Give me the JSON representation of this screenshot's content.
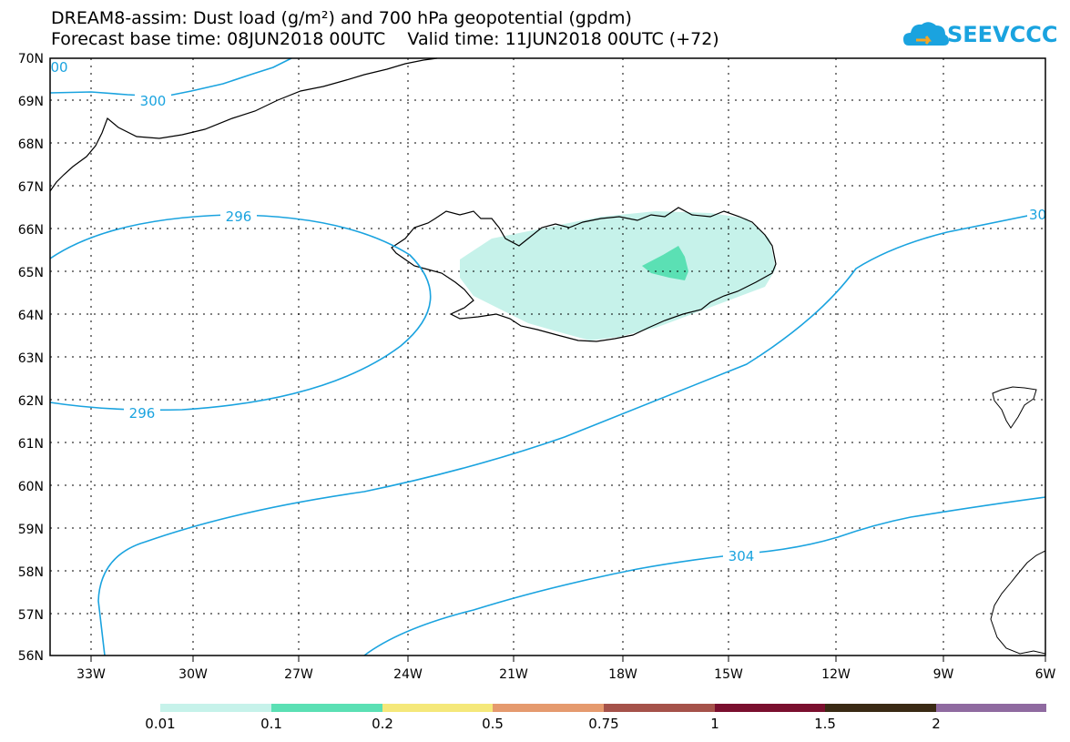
{
  "title": {
    "line1": "DREAM8-assim: Dust load (g/m²) and 700 hPa geopotential (gpdm)",
    "line2": "Forecast base time: 08JUN2018 00UTC    Valid time: 11JUN2018 00UTC (+72)"
  },
  "logo": {
    "text": "SEEVCCC",
    "icon": "cloud-icon"
  },
  "map": {
    "lat_labels": [
      "70N",
      "69N",
      "68N",
      "67N",
      "66N",
      "65N",
      "64N",
      "63N",
      "62N",
      "61N",
      "60N",
      "59N",
      "58N",
      "57N",
      "56N"
    ],
    "lon_labels": [
      "33W",
      "30W",
      "27W",
      "24W",
      "21W",
      "18W",
      "15W",
      "12W",
      "9W",
      "6W"
    ],
    "lat_range": [
      56,
      70
    ],
    "lon_range": [
      -34.4,
      -6
    ],
    "grid": "dotted"
  },
  "contours": {
    "color": "#1aa3df",
    "labels": [
      {
        "text": "300"
      },
      {
        "text": "00"
      },
      {
        "text": "296"
      },
      {
        "text": "296"
      },
      {
        "text": "30"
      },
      {
        "text": "304"
      }
    ]
  },
  "colorbar": {
    "levels": [
      "0.01",
      "0.1",
      "0.2",
      "0.5",
      "0.75",
      "1",
      "1.5",
      "2"
    ],
    "colors": [
      "#c6f2ea",
      "#5be0b4",
      "#f5e87a",
      "#e59a6e",
      "#a5524a",
      "#7a0f2e",
      "#3a2a14",
      "#8f6aa0"
    ]
  }
}
